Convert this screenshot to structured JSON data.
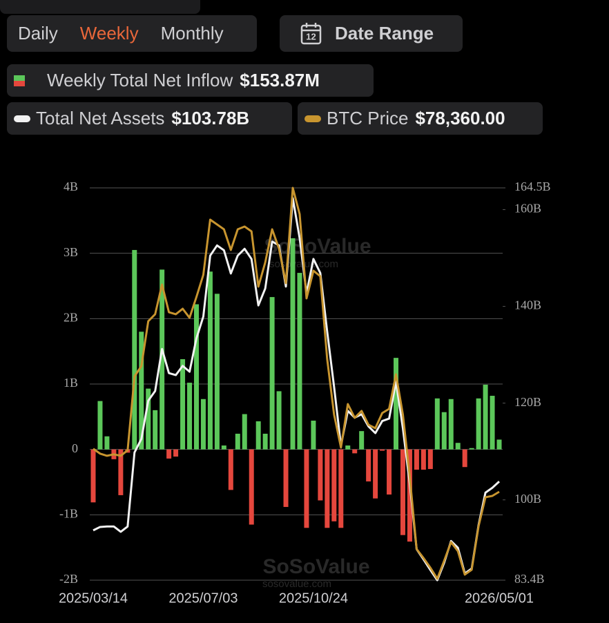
{
  "tabs": [
    "Daily",
    "Weekly",
    "Monthly"
  ],
  "active_tab": 1,
  "date_range": "Date Range",
  "calendar_day": "12",
  "watermark": [
    "SoSoValue",
    "sosovalue.com"
  ],
  "chart_data": {
    "type": "bar",
    "categories": [
      "2025/03/14",
      null,
      null,
      null,
      null,
      null,
      null,
      null,
      null,
      null,
      null,
      null,
      null,
      null,
      null,
      null,
      "2025/07/03",
      null,
      null,
      null,
      null,
      null,
      null,
      null,
      null,
      null,
      null,
      null,
      null,
      null,
      null,
      null,
      "2025/10/24",
      null,
      null,
      null,
      null,
      null,
      null,
      null,
      null,
      null,
      null,
      null,
      null,
      null,
      null,
      null,
      null,
      null,
      null,
      null,
      null,
      null,
      null,
      null,
      null,
      null,
      null,
      "2026/05/01"
    ],
    "series": [
      {
        "name": "Weekly Total Net Inflow",
        "summary": "$153.87M",
        "type": "bar",
        "color": "#5cc75a",
        "negative_color": "#e5473d",
        "values": [
          -0.81,
          0.74,
          0.2,
          -0.15,
          -0.7,
          -0.05,
          3.05,
          1.8,
          0.93,
          0.6,
          2.75,
          -0.14,
          -0.11,
          1.38,
          1.02,
          2.22,
          0.77,
          2.72,
          2.38,
          0.06,
          -0.62,
          0.24,
          0.54,
          -1.15,
          0.43,
          0.24,
          2.33,
          0.89,
          -0.88,
          3.23,
          2.7,
          -1.2,
          0.44,
          -0.78,
          -1.2,
          -1.1,
          -1.2,
          0.06,
          -0.06,
          0.28,
          -0.49,
          -0.75,
          -0.02,
          -0.69,
          1.4,
          -1.31,
          -1.41,
          -0.31,
          -0.31,
          -0.3,
          0.78,
          0.57,
          0.77,
          0.1,
          -0.27,
          0.02,
          0.78,
          0.99,
          0.82,
          0.15
        ]
      },
      {
        "name": "Total Net Assets",
        "summary": "$103.78B",
        "type": "line",
        "axis": "y2",
        "color": "#f2f2f2",
        "values": [
          93.7,
          94.4,
          94.5,
          94.5,
          93.4,
          94.5,
          109.8,
          112.6,
          120.5,
          122.5,
          131.2,
          126.2,
          125.8,
          127.7,
          126.5,
          133.4,
          137.9,
          150.5,
          152.6,
          151.6,
          146.8,
          150.5,
          151.9,
          149.8,
          140.2,
          143.7,
          153.4,
          152.6,
          144.1,
          162.4,
          154.1,
          142.7,
          149.8,
          146.9,
          134.8,
          123.4,
          111.2,
          118.4,
          117.0,
          117.7,
          115.2,
          113.8,
          116.3,
          116.8,
          124.4,
          114.8,
          103.4,
          89.8,
          87.7,
          85.5,
          83.4,
          87.0,
          91.5,
          90.1,
          84.8,
          85.8,
          94.8,
          101.5,
          102.5,
          103.8
        ]
      },
      {
        "name": "BTC Price",
        "summary": "$78,360.00",
        "type": "line",
        "axis": "y3",
        "color": "#c8952f",
        "values": [
          85100,
          84340,
          84000,
          84230,
          84000,
          84860,
          96440,
          98070,
          105100,
          106190,
          110840,
          106510,
          106190,
          107050,
          105640,
          108900,
          112360,
          121020,
          120260,
          119500,
          116260,
          119500,
          119940,
          119180,
          110520,
          114310,
          119500,
          116470,
          111060,
          126000,
          121890,
          108680,
          113010,
          112140,
          99150,
          90490,
          85290,
          92110,
          89950,
          91030,
          88860,
          88320,
          90700,
          91350,
          96770,
          90490,
          80740,
          69370,
          67970,
          66450,
          64720,
          67540,
          70460,
          69050,
          65370,
          66130,
          72950,
          77500,
          77710,
          78360
        ]
      }
    ],
    "ylim": [
      -2,
      4
    ],
    "yticks": [
      {
        "value": -2,
        "label": "-2B"
      },
      {
        "value": -1,
        "label": "-1B"
      },
      0,
      {
        "value": 1,
        "label": "1B"
      },
      {
        "value": 2,
        "label": "2B"
      },
      {
        "value": 3,
        "label": "3B"
      },
      {
        "value": 4,
        "label": "4B"
      }
    ],
    "y2lim": [
      83.4,
      164.5
    ],
    "y2ticks": [
      {
        "value": 83.4,
        "label": "83.4B"
      },
      {
        "value": 100,
        "label": "100B"
      },
      {
        "value": 120,
        "label": "120B"
      },
      {
        "value": 140,
        "label": "140B"
      },
      {
        "value": 160,
        "label": "160B"
      },
      {
        "value": 164.5,
        "label": "164.5B"
      }
    ],
    "y3lim": [
      64500,
      126000
    ],
    "grid": true
  }
}
